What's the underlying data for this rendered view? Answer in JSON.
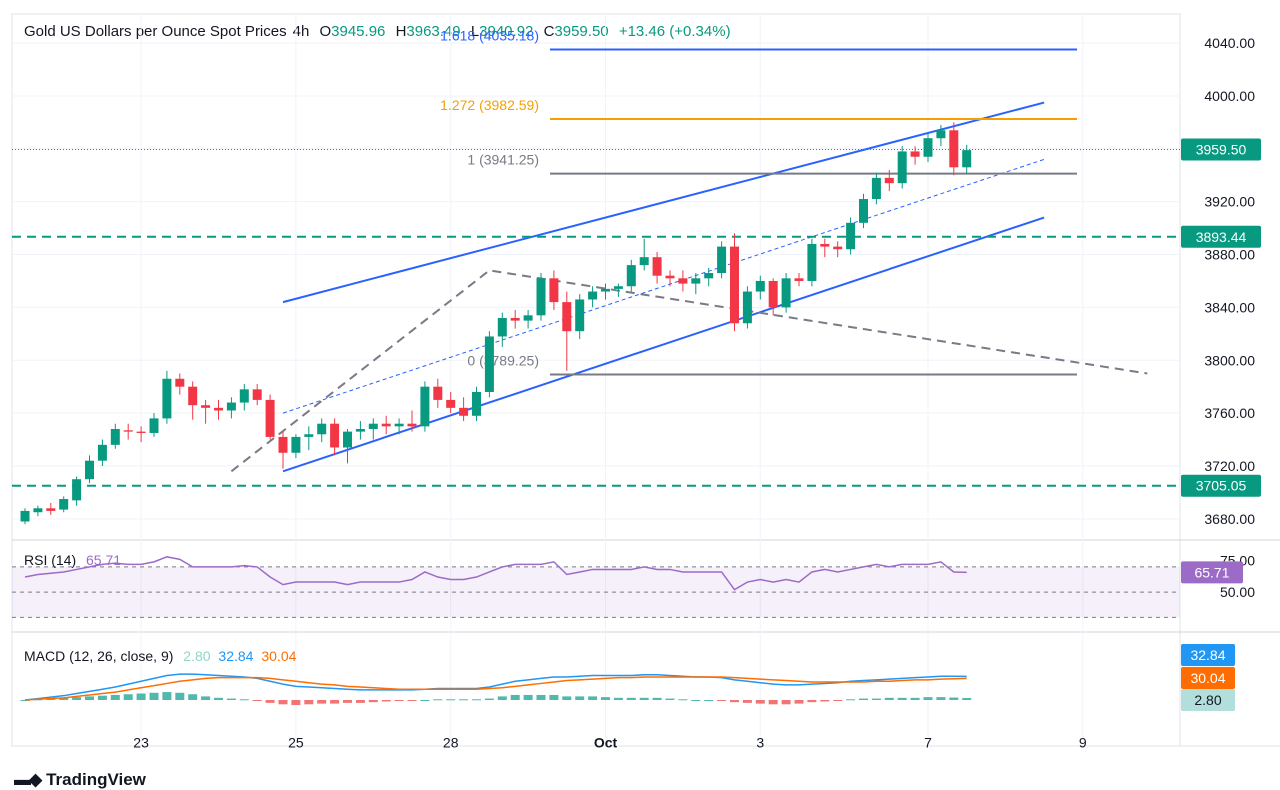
{
  "header": {
    "symbol": "Gold US Dollars per Ounce Spot Prices",
    "interval": "4h",
    "open_label": "O",
    "open": "3945.96",
    "high_label": "H",
    "high": "3963.49",
    "low_label": "L",
    "low": "3940.92",
    "close_label": "C",
    "close": "3959.50",
    "change": "+13.46 (+0.34%)"
  },
  "branding": {
    "name": "TradingView"
  },
  "colors": {
    "up": "#089981",
    "down": "#f23645",
    "channel": "#2962ff",
    "fib_orange": "#f59f00",
    "fib_gray": "#787b86",
    "rsi": "#9c6bc8",
    "macd_line": "#2196f3",
    "signal_line": "#ff6d00"
  },
  "chart_data": {
    "type": "candlestick",
    "y_axis_ticks": [
      "4040.00",
      "4000.00",
      "3960.00",
      "3920.00",
      "3880.00",
      "3840.00",
      "3800.00",
      "3760.00",
      "3720.00",
      "3680.00"
    ],
    "ylim": [
      3664,
      4062
    ],
    "x_axis_ticks": [
      {
        "label": "23",
        "bar": 9
      },
      {
        "label": "25",
        "bar": 21
      },
      {
        "label": "28",
        "bar": 33
      },
      {
        "label": "Oct",
        "bar": 45
      },
      {
        "label": "3",
        "bar": 57
      },
      {
        "label": "7",
        "bar": 70
      },
      {
        "label": "9",
        "bar": 82
      }
    ],
    "candles": [
      [
        3678,
        3688,
        3676,
        3686
      ],
      [
        3685,
        3690,
        3682,
        3688
      ],
      [
        3688,
        3692,
        3683,
        3686
      ],
      [
        3687,
        3697,
        3685,
        3695
      ],
      [
        3694,
        3712,
        3690,
        3710
      ],
      [
        3710,
        3728,
        3707,
        3724
      ],
      [
        3724,
        3740,
        3720,
        3736
      ],
      [
        3736,
        3752,
        3733,
        3748
      ],
      [
        3747,
        3752,
        3740,
        3746
      ],
      [
        3746,
        3750,
        3738,
        3745
      ],
      [
        3745,
        3760,
        3742,
        3756
      ],
      [
        3756,
        3792,
        3752,
        3786
      ],
      [
        3786,
        3790,
        3774,
        3780
      ],
      [
        3780,
        3784,
        3755,
        3766
      ],
      [
        3766,
        3770,
        3752,
        3764
      ],
      [
        3764,
        3770,
        3755,
        3762
      ],
      [
        3762,
        3772,
        3756,
        3768
      ],
      [
        3768,
        3782,
        3762,
        3778
      ],
      [
        3778,
        3782,
        3766,
        3770
      ],
      [
        3770,
        3774,
        3740,
        3742
      ],
      [
        3742,
        3746,
        3718,
        3730
      ],
      [
        3730,
        3744,
        3726,
        3742
      ],
      [
        3742,
        3750,
        3732,
        3744
      ],
      [
        3744,
        3756,
        3738,
        3752
      ],
      [
        3752,
        3756,
        3728,
        3734
      ],
      [
        3734,
        3748,
        3722,
        3746
      ],
      [
        3746,
        3754,
        3740,
        3748
      ],
      [
        3748,
        3756,
        3740,
        3752
      ],
      [
        3752,
        3758,
        3744,
        3750
      ],
      [
        3750,
        3756,
        3744,
        3752
      ],
      [
        3752,
        3762,
        3746,
        3750
      ],
      [
        3750,
        3784,
        3746,
        3780
      ],
      [
        3780,
        3786,
        3764,
        3770
      ],
      [
        3770,
        3776,
        3760,
        3764
      ],
      [
        3764,
        3772,
        3754,
        3758
      ],
      [
        3758,
        3780,
        3754,
        3776
      ],
      [
        3776,
        3822,
        3772,
        3818
      ],
      [
        3818,
        3836,
        3810,
        3832
      ],
      [
        3832,
        3838,
        3824,
        3830
      ],
      [
        3830,
        3838,
        3824,
        3834
      ],
      [
        3834,
        3866,
        3830,
        3862
      ],
      [
        3862,
        3868,
        3838,
        3844
      ],
      [
        3844,
        3852,
        3792,
        3822
      ],
      [
        3822,
        3850,
        3816,
        3846
      ],
      [
        3846,
        3856,
        3840,
        3852
      ],
      [
        3852,
        3858,
        3846,
        3854
      ],
      [
        3854,
        3858,
        3848,
        3856
      ],
      [
        3856,
        3876,
        3852,
        3872
      ],
      [
        3872,
        3892,
        3868,
        3878
      ],
      [
        3878,
        3882,
        3858,
        3864
      ],
      [
        3864,
        3868,
        3856,
        3862
      ],
      [
        3862,
        3868,
        3852,
        3858
      ],
      [
        3858,
        3866,
        3850,
        3862
      ],
      [
        3862,
        3870,
        3856,
        3866
      ],
      [
        3866,
        3890,
        3862,
        3886
      ],
      [
        3886,
        3896,
        3822,
        3828
      ],
      [
        3828,
        3856,
        3824,
        3852
      ],
      [
        3852,
        3864,
        3846,
        3860
      ],
      [
        3860,
        3862,
        3834,
        3840
      ],
      [
        3840,
        3866,
        3836,
        3862
      ],
      [
        3862,
        3866,
        3856,
        3860
      ],
      [
        3860,
        3892,
        3856,
        3888
      ],
      [
        3888,
        3892,
        3878,
        3886
      ],
      [
        3886,
        3890,
        3878,
        3884
      ],
      [
        3884,
        3908,
        3880,
        3904
      ],
      [
        3904,
        3926,
        3900,
        3922
      ],
      [
        3922,
        3942,
        3918,
        3938
      ],
      [
        3938,
        3944,
        3928,
        3934
      ],
      [
        3934,
        3962,
        3930,
        3958
      ],
      [
        3958,
        3962,
        3948,
        3954
      ],
      [
        3954,
        3972,
        3950,
        3968
      ],
      [
        3968,
        3978,
        3962,
        3974
      ],
      [
        3974,
        3980,
        3940,
        3946
      ],
      [
        3946,
        3963,
        3941,
        3959
      ]
    ],
    "fib_levels": [
      {
        "label": "1.618 (4035.18)",
        "value": 4035.18,
        "color": "#2962ff"
      },
      {
        "label": "1.272 (3982.59)",
        "value": 3982.59,
        "color": "#f59f00"
      },
      {
        "label": "1 (3941.25)",
        "value": 3941.25,
        "color": "#787b86"
      },
      {
        "label": "0 (3789.25)",
        "value": 3789.25,
        "color": "#787b86"
      }
    ],
    "horizontal_levels": [
      {
        "label": "3893.44",
        "value": 3893.44
      },
      {
        "label": "3705.05",
        "value": 3705.05
      }
    ],
    "last_price": {
      "label": "3959.50",
      "value": 3959.5
    },
    "channel": {
      "upper": [
        [
          20,
          3844
        ],
        [
          79,
          3995
        ]
      ],
      "lower": [
        [
          20,
          3716
        ],
        [
          79,
          3908
        ]
      ],
      "mid": [
        [
          20,
          3760
        ],
        [
          79,
          3952
        ]
      ]
    },
    "zigzag": [
      [
        16,
        3716
      ],
      [
        36,
        3868
      ],
      [
        87,
        3790
      ]
    ],
    "rsi": {
      "label": "RSI (14)",
      "value": "65.71",
      "ticks": [
        "75.00",
        "50.00"
      ],
      "upper_band": 70,
      "lower_band": 30,
      "values": [
        62,
        64,
        65,
        66,
        68,
        70,
        72,
        73,
        72,
        72,
        74,
        78,
        76,
        70,
        70,
        70,
        70,
        71,
        70,
        62,
        56,
        58,
        58,
        58,
        58,
        56,
        58,
        58,
        58,
        58,
        60,
        66,
        62,
        60,
        60,
        62,
        66,
        70,
        72,
        72,
        72,
        74,
        64,
        66,
        68,
        68,
        68,
        68,
        70,
        68,
        68,
        66,
        66,
        66,
        66,
        52,
        58,
        60,
        58,
        60,
        58,
        66,
        68,
        66,
        68,
        70,
        72,
        70,
        72,
        72,
        72,
        74,
        66,
        65.71
      ]
    },
    "macd": {
      "label": "MACD (12, 26, close, 9)",
      "hist_label": "2.80",
      "macd_label": "32.84",
      "signal_label": "30.04",
      "macd": [
        0,
        2,
        4,
        6,
        9,
        12,
        15,
        18,
        22,
        26,
        30,
        34,
        36,
        36,
        35,
        34,
        33,
        32,
        30,
        26,
        22,
        19,
        18,
        17,
        16,
        15,
        14,
        14,
        14,
        14,
        14,
        15,
        16,
        16,
        16,
        16,
        18,
        22,
        26,
        28,
        30,
        32,
        32,
        33,
        34,
        34,
        34,
        34,
        35,
        35,
        34,
        33,
        32,
        32,
        31,
        28,
        26,
        24,
        22,
        21,
        21,
        22,
        23,
        24,
        26,
        27,
        28,
        29,
        30,
        31,
        32,
        33,
        33,
        32.84
      ],
      "signal": [
        0,
        1,
        2,
        3,
        5,
        7,
        9,
        11,
        14,
        17,
        20,
        23,
        26,
        28,
        30,
        31,
        31,
        31,
        31,
        30,
        28,
        26,
        24,
        22,
        21,
        19,
        18,
        17,
        16,
        15,
        15,
        15,
        15,
        15,
        15,
        15,
        16,
        17,
        19,
        21,
        23,
        25,
        27,
        28,
        29,
        30,
        31,
        31,
        32,
        32,
        32,
        32,
        32,
        32,
        32,
        31,
        30,
        29,
        28,
        27,
        26,
        25,
        25,
        25,
        25,
        25,
        26,
        26,
        27,
        28,
        28,
        29,
        29.6,
        30.04
      ],
      "hist": [
        0,
        1,
        2,
        3,
        4,
        5,
        6,
        7,
        8,
        9,
        10,
        11,
        10,
        8,
        5,
        3,
        2,
        1,
        -1,
        -4,
        -6,
        -7,
        -6,
        -5,
        -5,
        -4,
        -4,
        -3,
        -2,
        -1,
        -1,
        0,
        1,
        1,
        1,
        1,
        2,
        5,
        7,
        7,
        7,
        7,
        5,
        5,
        5,
        4,
        3,
        3,
        3,
        3,
        2,
        1,
        0,
        0,
        -1,
        -3,
        -4,
        -5,
        -6,
        -6,
        -5,
        -3,
        -2,
        -1,
        1,
        2,
        2,
        3,
        3,
        3,
        4,
        4,
        3.4,
        2.8
      ]
    }
  }
}
